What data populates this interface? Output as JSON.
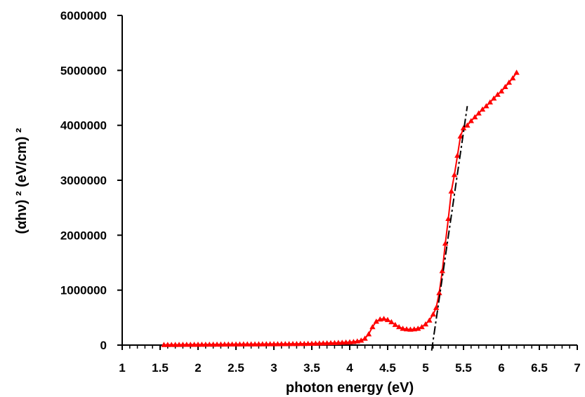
{
  "chart_data": {
    "type": "scatter",
    "title": "",
    "xlabel": "photon energy (eV)",
    "ylabel": "(αhν) ² (eV/cm) ²",
    "xlim": [
      1,
      7
    ],
    "ylim": [
      0,
      6000000
    ],
    "x_ticks": [
      "1",
      "1.5",
      "2",
      "2.5",
      "3",
      "3.5",
      "4",
      "4.5",
      "5",
      "5.5",
      "6",
      "6.5",
      "7"
    ],
    "y_ticks": [
      "0",
      "1000000",
      "2000000",
      "3000000",
      "4000000",
      "5000000",
      "6000000"
    ],
    "grid": false,
    "legend": "none",
    "series": [
      {
        "marker": "triangle",
        "color": "#ff0000",
        "points": [
          [
            1.55,
            5000
          ],
          [
            1.6,
            6000
          ],
          [
            1.65,
            6000
          ],
          [
            1.7,
            7000
          ],
          [
            1.75,
            7000
          ],
          [
            1.8,
            8000
          ],
          [
            1.85,
            8000
          ],
          [
            1.9,
            9000
          ],
          [
            1.95,
            9000
          ],
          [
            2.0,
            10000
          ],
          [
            2.05,
            10000
          ],
          [
            2.1,
            11000
          ],
          [
            2.15,
            11000
          ],
          [
            2.2,
            12000
          ],
          [
            2.25,
            12000
          ],
          [
            2.3,
            13000
          ],
          [
            2.35,
            13000
          ],
          [
            2.4,
            14000
          ],
          [
            2.45,
            14000
          ],
          [
            2.5,
            15000
          ],
          [
            2.55,
            15000
          ],
          [
            2.6,
            16000
          ],
          [
            2.65,
            16000
          ],
          [
            2.7,
            17000
          ],
          [
            2.75,
            17000
          ],
          [
            2.8,
            18000
          ],
          [
            2.85,
            18000
          ],
          [
            2.9,
            19000
          ],
          [
            2.95,
            19000
          ],
          [
            3.0,
            20000
          ],
          [
            3.05,
            20000
          ],
          [
            3.1,
            21000
          ],
          [
            3.15,
            21000
          ],
          [
            3.2,
            22000
          ],
          [
            3.25,
            23000
          ],
          [
            3.3,
            23000
          ],
          [
            3.35,
            24000
          ],
          [
            3.4,
            25000
          ],
          [
            3.45,
            26000
          ],
          [
            3.5,
            28000
          ],
          [
            3.55,
            30000
          ],
          [
            3.6,
            32000
          ],
          [
            3.65,
            34000
          ],
          [
            3.7,
            36000
          ],
          [
            3.75,
            38000
          ],
          [
            3.8,
            40000
          ],
          [
            3.85,
            43000
          ],
          [
            3.9,
            46000
          ],
          [
            3.95,
            50000
          ],
          [
            4.0,
            55000
          ],
          [
            4.05,
            60000
          ],
          [
            4.1,
            70000
          ],
          [
            4.15,
            85000
          ],
          [
            4.2,
            120000
          ],
          [
            4.25,
            200000
          ],
          [
            4.3,
            330000
          ],
          [
            4.35,
            430000
          ],
          [
            4.4,
            470000
          ],
          [
            4.45,
            480000
          ],
          [
            4.5,
            460000
          ],
          [
            4.55,
            420000
          ],
          [
            4.6,
            370000
          ],
          [
            4.65,
            330000
          ],
          [
            4.7,
            300000
          ],
          [
            4.75,
            290000
          ],
          [
            4.8,
            285000
          ],
          [
            4.85,
            290000
          ],
          [
            4.9,
            300000
          ],
          [
            4.95,
            330000
          ],
          [
            5.0,
            380000
          ],
          [
            5.05,
            450000
          ],
          [
            5.1,
            560000
          ],
          [
            5.14,
            680000
          ],
          [
            5.18,
            950000
          ],
          [
            5.22,
            1350000
          ],
          [
            5.26,
            1850000
          ],
          [
            5.3,
            2300000
          ],
          [
            5.34,
            2800000
          ],
          [
            5.38,
            3100000
          ],
          [
            5.42,
            3450000
          ],
          [
            5.46,
            3800000
          ],
          [
            5.5,
            3950000
          ],
          [
            5.55,
            4000000
          ],
          [
            5.6,
            4080000
          ],
          [
            5.65,
            4150000
          ],
          [
            5.7,
            4220000
          ],
          [
            5.75,
            4290000
          ],
          [
            5.8,
            4350000
          ],
          [
            5.85,
            4420000
          ],
          [
            5.9,
            4490000
          ],
          [
            5.95,
            4560000
          ],
          [
            6.0,
            4620000
          ],
          [
            6.05,
            4700000
          ],
          [
            6.1,
            4780000
          ],
          [
            6.15,
            4860000
          ],
          [
            6.2,
            4960000
          ]
        ]
      }
    ],
    "fit_line": {
      "style": "dash-dot",
      "color": "#000000",
      "points": [
        [
          5.08,
          -100000
        ],
        [
          5.55,
          4350000
        ]
      ]
    }
  }
}
